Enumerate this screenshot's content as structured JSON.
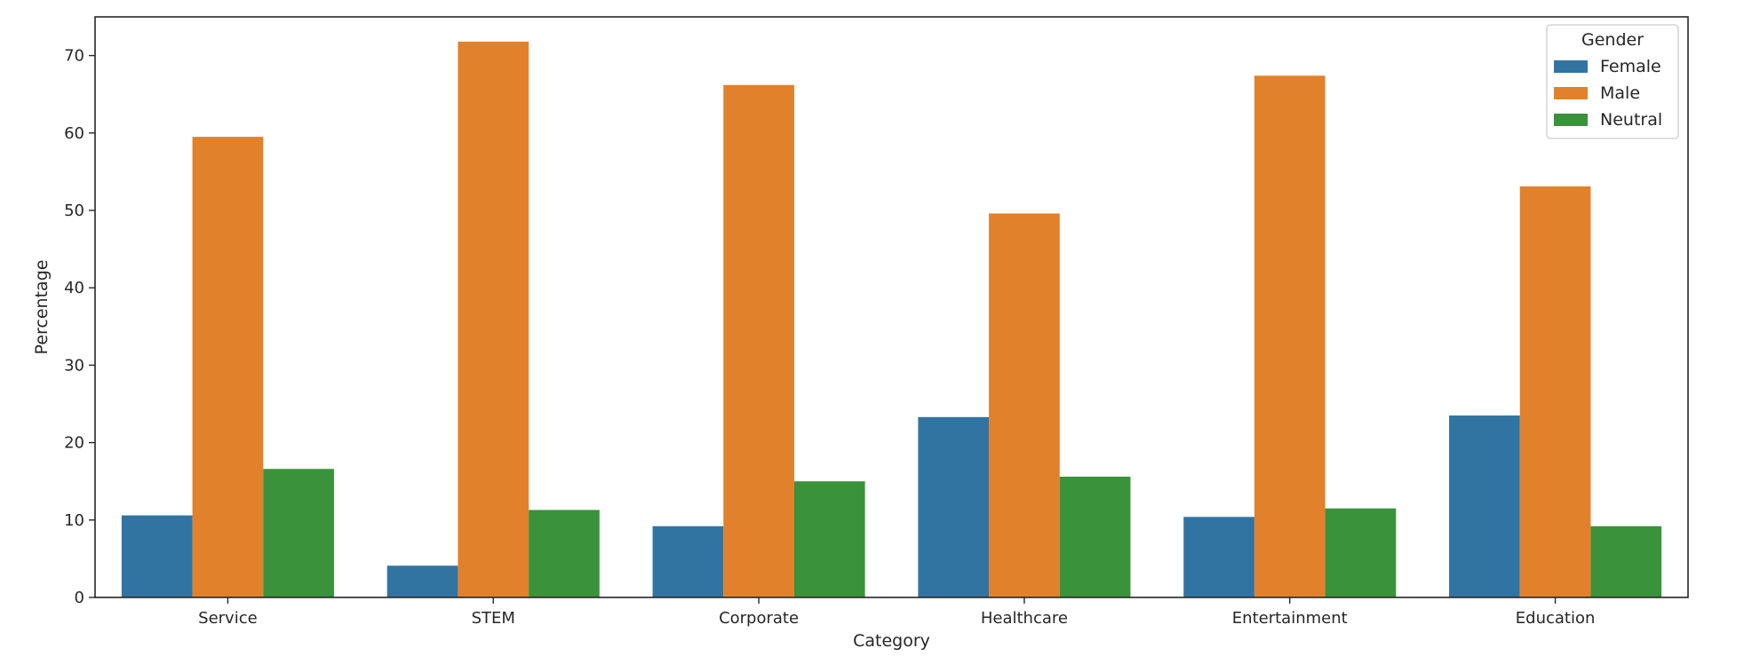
{
  "chart_data": {
    "type": "bar",
    "xlabel": "Category",
    "ylabel": "Percentage",
    "categories": [
      "Service",
      "STEM",
      "Corporate",
      "Healthcare",
      "Entertainment",
      "Education"
    ],
    "series": [
      {
        "name": "Female",
        "color": "#3274a1",
        "values": [
          10.6,
          4.1,
          9.2,
          23.3,
          10.4,
          23.5
        ]
      },
      {
        "name": "Male",
        "color": "#e1812c",
        "values": [
          59.5,
          71.8,
          66.2,
          49.6,
          67.4,
          53.1
        ]
      },
      {
        "name": "Neutral",
        "color": "#3a923a",
        "values": [
          16.6,
          11.3,
          15.0,
          15.6,
          11.5,
          9.2
        ]
      }
    ],
    "ylim": [
      0,
      75
    ],
    "yticks": [
      0,
      10,
      20,
      30,
      40,
      50,
      60,
      70
    ],
    "legend": {
      "title": "Gender",
      "position": "top-right"
    },
    "grid": false
  }
}
